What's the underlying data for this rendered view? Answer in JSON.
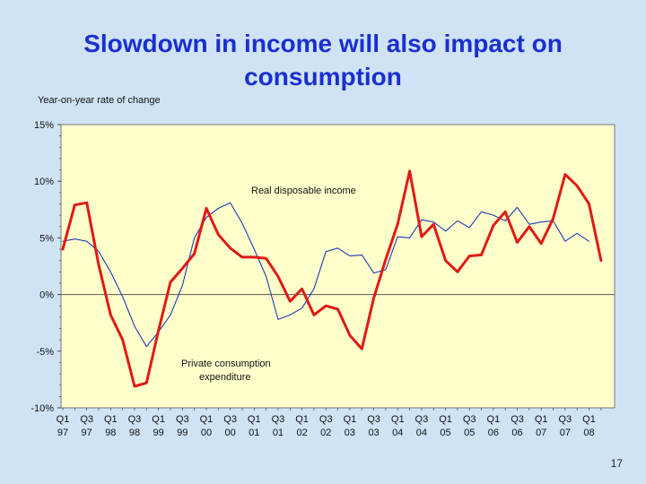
{
  "slide": {
    "title_line1": "Slowdown in income will also impact on",
    "title_line2": "consumption",
    "page_number": "17"
  },
  "chart_data": {
    "type": "line",
    "title": "Slowdown in income will also impact on consumption",
    "ylabel": "Year-on-year rate of change",
    "ylim": [
      -10,
      15
    ],
    "yticks": [
      -10,
      -5,
      0,
      5,
      10,
      15
    ],
    "ytick_labels": [
      "-10%",
      "-5%",
      "0%",
      "5%",
      "10%",
      "15%"
    ],
    "x_quarters": [
      "Q1 97",
      "Q2 97",
      "Q3 97",
      "Q4 97",
      "Q1 98",
      "Q2 98",
      "Q3 98",
      "Q4 98",
      "Q1 99",
      "Q2 99",
      "Q3 99",
      "Q4 99",
      "Q1 00",
      "Q2 00",
      "Q3 00",
      "Q4 00",
      "Q1 01",
      "Q2 01",
      "Q3 01",
      "Q4 01",
      "Q1 02",
      "Q2 02",
      "Q3 02",
      "Q4 02",
      "Q1 03",
      "Q2 03",
      "Q3 03",
      "Q4 03",
      "Q1 04",
      "Q2 04",
      "Q3 04",
      "Q4 04",
      "Q1 05",
      "Q2 05",
      "Q3 05",
      "Q4 05",
      "Q1 06",
      "Q2 06",
      "Q3 06",
      "Q4 06",
      "Q1 07",
      "Q2 07",
      "Q3 07",
      "Q4 07",
      "Q1 08",
      "Q2 08"
    ],
    "xtick_labels": [
      {
        "index": 0,
        "q": "Q1",
        "y": "97"
      },
      {
        "index": 2,
        "q": "Q3",
        "y": "97"
      },
      {
        "index": 4,
        "q": "Q1",
        "y": "98"
      },
      {
        "index": 6,
        "q": "Q3",
        "y": "98"
      },
      {
        "index": 8,
        "q": "Q1",
        "y": "99"
      },
      {
        "index": 10,
        "q": "Q3",
        "y": "99"
      },
      {
        "index": 12,
        "q": "Q1",
        "y": "00"
      },
      {
        "index": 14,
        "q": "Q3",
        "y": "00"
      },
      {
        "index": 16,
        "q": "Q1",
        "y": "01"
      },
      {
        "index": 18,
        "q": "Q3",
        "y": "01"
      },
      {
        "index": 20,
        "q": "Q1",
        "y": "02"
      },
      {
        "index": 22,
        "q": "Q3",
        "y": "02"
      },
      {
        "index": 24,
        "q": "Q1",
        "y": "03"
      },
      {
        "index": 26,
        "q": "Q3",
        "y": "03"
      },
      {
        "index": 28,
        "q": "Q1",
        "y": "04"
      },
      {
        "index": 30,
        "q": "Q3",
        "y": "04"
      },
      {
        "index": 32,
        "q": "Q1",
        "y": "05"
      },
      {
        "index": 34,
        "q": "Q3",
        "y": "05"
      },
      {
        "index": 36,
        "q": "Q1",
        "y": "06"
      },
      {
        "index": 38,
        "q": "Q3",
        "y": "06"
      },
      {
        "index": 40,
        "q": "Q1",
        "y": "07"
      },
      {
        "index": 42,
        "q": "Q3",
        "y": "07"
      },
      {
        "index": 44,
        "q": "Q1",
        "y": "08"
      }
    ],
    "series": [
      {
        "name": "Real disposable income",
        "color": "#1f3bb5",
        "style": "thin",
        "values": [
          4.7,
          4.9,
          4.7,
          3.8,
          2.0,
          -0.2,
          -2.8,
          -4.6,
          -3.3,
          -1.8,
          0.8,
          5.0,
          6.8,
          7.6,
          8.1,
          6.3,
          4.0,
          1.6,
          -2.2,
          -1.8,
          -1.2,
          0.5,
          3.8,
          4.1,
          3.4,
          3.5,
          1.9,
          2.2,
          5.1,
          5.0,
          6.6,
          6.4,
          5.6,
          6.5,
          5.9,
          7.3,
          7.0,
          6.5,
          7.7,
          6.2,
          6.4,
          6.5,
          4.7,
          5.4,
          4.7,
          null
        ]
      },
      {
        "name": "Private consumption expenditure",
        "color": "#e01a14",
        "style": "thick",
        "values": [
          4.0,
          7.9,
          8.1,
          2.6,
          -1.8,
          -4.0,
          -8.1,
          -7.8,
          -3.2,
          1.1,
          2.3,
          3.6,
          7.6,
          5.3,
          4.1,
          3.3,
          3.3,
          3.2,
          1.6,
          -0.6,
          0.5,
          -1.8,
          -1.0,
          -1.3,
          -3.6,
          -4.8,
          -0.3,
          3.1,
          6.2,
          10.9,
          5.1,
          6.2,
          3.0,
          2.0,
          3.4,
          3.5,
          6.1,
          7.3,
          4.6,
          6.0,
          4.5,
          6.7,
          10.6,
          9.6,
          8.0,
          3.0
        ]
      }
    ],
    "annotations": [
      {
        "text": "Real disposable  income",
        "series": "Real disposable income"
      },
      {
        "text_line1": "Private consumption",
        "text_line2": "expenditure",
        "series": "Private consumption expenditure"
      }
    ],
    "grid": false,
    "zero_line": true,
    "plot_background": "#ffffcc"
  }
}
